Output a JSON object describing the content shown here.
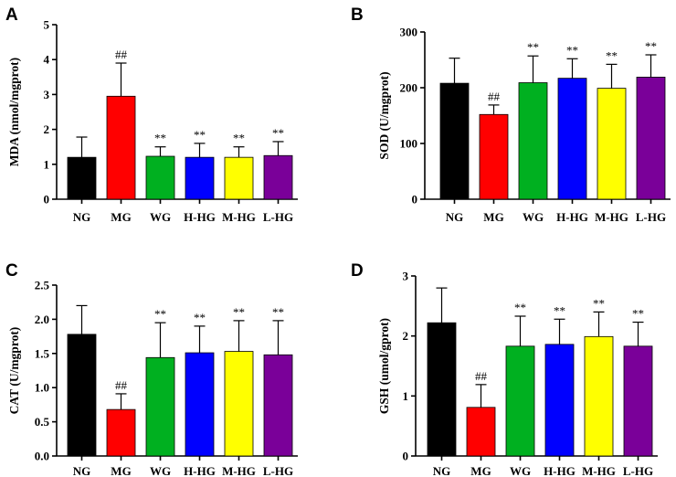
{
  "colors": [
    "#000000",
    "#ff0000",
    "#00b020",
    "#0000ff",
    "#ffff00",
    "#7a0099"
  ],
  "chart_data": [
    {
      "type": "bar",
      "panel": "A",
      "ylabel": "MDA (nmol/mgprot)",
      "categories": [
        "NG",
        "MG",
        "WG",
        "H-HG",
        "M-HG",
        "L-HG"
      ],
      "values": [
        1.2,
        2.95,
        1.23,
        1.2,
        1.2,
        1.25
      ],
      "errors": [
        0.58,
        0.95,
        0.27,
        0.4,
        0.3,
        0.4
      ],
      "significance": [
        "",
        "##",
        "**",
        "**",
        "**",
        "**"
      ],
      "ylim": [
        0,
        5
      ],
      "yticks": [
        0,
        1,
        2,
        3,
        4,
        5
      ],
      "ytick_labels": [
        "0",
        "1",
        "2",
        "3",
        "4",
        "5"
      ]
    },
    {
      "type": "bar",
      "panel": "B",
      "ylabel": "SOD (U/mgprot)",
      "categories": [
        "NG",
        "MG",
        "WG",
        "H-HG",
        "M-HG",
        "L-HG"
      ],
      "values": [
        208,
        152,
        209,
        217,
        199,
        219
      ],
      "errors": [
        45,
        17,
        48,
        35,
        43,
        40
      ],
      "significance": [
        "",
        "##",
        "**",
        "**",
        "**",
        "**"
      ],
      "ylim": [
        0,
        300
      ],
      "yticks": [
        0,
        100,
        200,
        300
      ],
      "ytick_labels": [
        "0",
        "100",
        "200",
        "300"
      ]
    },
    {
      "type": "bar",
      "panel": "C",
      "ylabel": "CAT (U/mgprot)",
      "categories": [
        "NG",
        "MG",
        "WG",
        "H-HG",
        "M-HG",
        "L-HG"
      ],
      "values": [
        1.78,
        0.68,
        1.44,
        1.51,
        1.53,
        1.48
      ],
      "errors": [
        0.42,
        0.23,
        0.51,
        0.39,
        0.45,
        0.5
      ],
      "significance": [
        "",
        "##",
        "**",
        "**",
        "**",
        "**"
      ],
      "ylim": [
        0,
        2.5
      ],
      "yticks": [
        0,
        0.5,
        1,
        1.5,
        2,
        2.5
      ],
      "ytick_labels": [
        "0.0",
        "0.5",
        "1.0",
        "1.5",
        "2.0",
        "2.5"
      ]
    },
    {
      "type": "bar",
      "panel": "D",
      "ylabel": "GSH (umol/gprot)",
      "categories": [
        "NG",
        "MG",
        "WG",
        "H-HG",
        "M-HG",
        "L-HG"
      ],
      "values": [
        2.22,
        0.81,
        1.83,
        1.86,
        1.99,
        1.83
      ],
      "errors": [
        0.58,
        0.38,
        0.5,
        0.42,
        0.41,
        0.4
      ],
      "significance": [
        "",
        "##",
        "**",
        "**",
        "**",
        "**"
      ],
      "ylim": [
        0,
        3
      ],
      "yticks": [
        0,
        1,
        2,
        3
      ],
      "ytick_labels": [
        "0",
        "1",
        "2",
        "3"
      ]
    }
  ]
}
